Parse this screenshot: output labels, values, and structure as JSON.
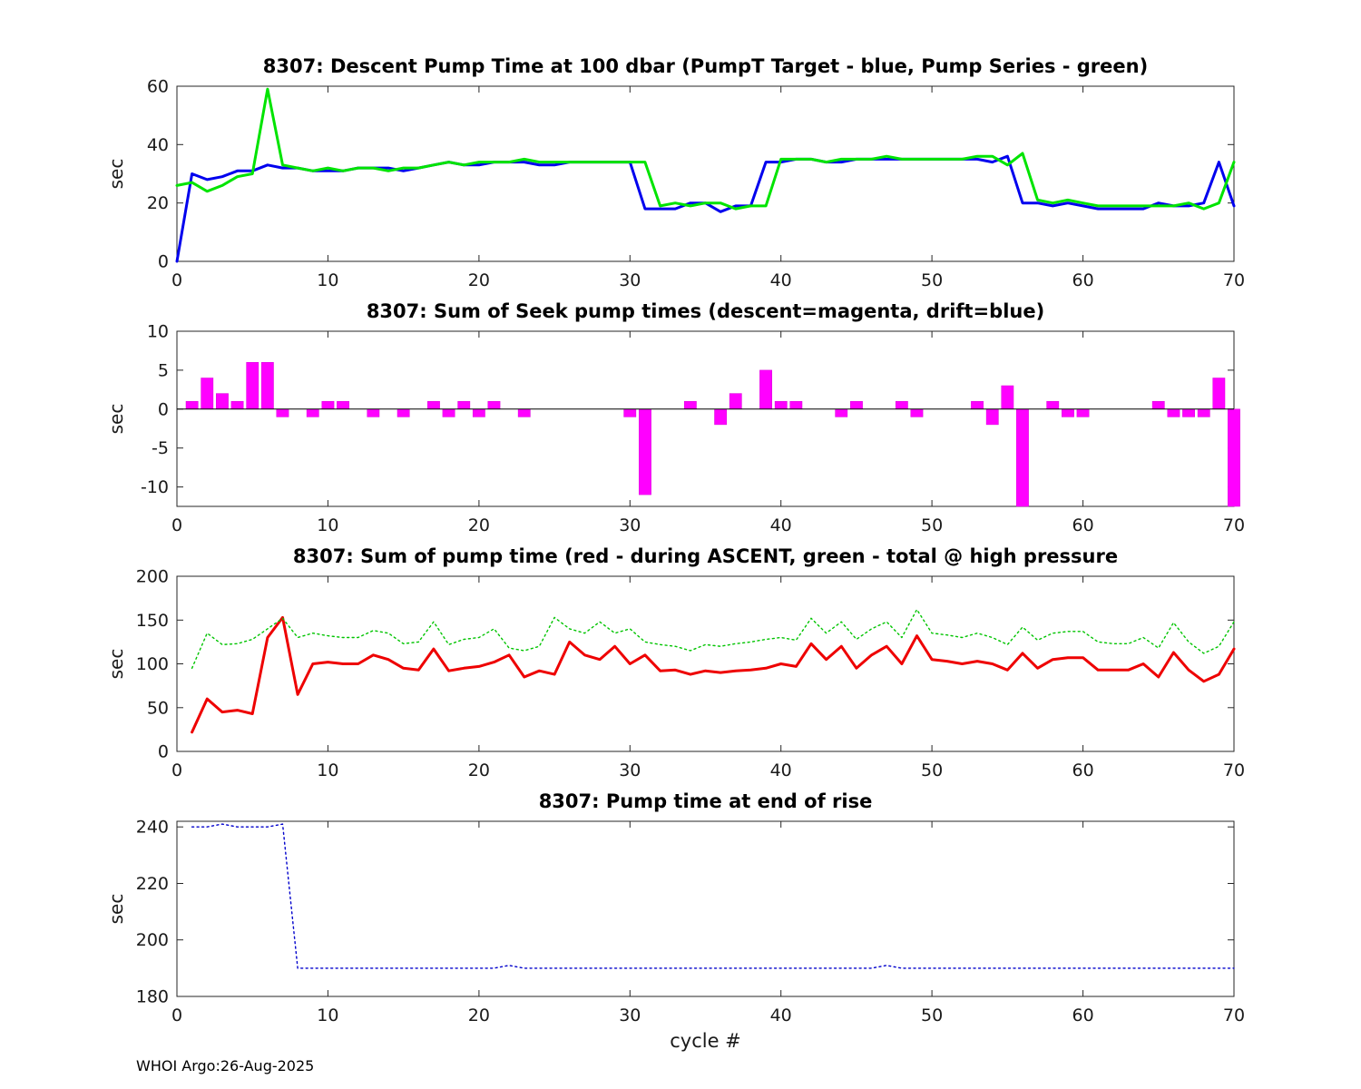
{
  "footer": {
    "text": "WHOI Argo:26-Aug-2025"
  },
  "chart_data": [
    {
      "type": "line",
      "title": "8307: Descent Pump Time at 100 dbar (PumpT Target - blue, Pump Series - green)",
      "ylabel": "sec",
      "xlabel": "",
      "xlim": [
        0,
        70
      ],
      "ylim": [
        0,
        60
      ],
      "xticks": [
        0,
        10,
        20,
        30,
        40,
        50,
        60,
        70
      ],
      "yticks": [
        0,
        20,
        40,
        60
      ],
      "series": [
        {
          "name": "PumpT Target",
          "color": "#0000ee",
          "width": 3,
          "dash": "solid",
          "x_start": 0,
          "y": [
            0,
            30,
            28,
            29,
            31,
            31,
            33,
            32,
            32,
            31,
            31,
            31,
            32,
            32,
            32,
            31,
            32,
            33,
            34,
            33,
            33,
            34,
            34,
            34,
            33,
            33,
            34,
            34,
            34,
            34,
            34,
            18,
            18,
            18,
            20,
            20,
            17,
            19,
            19,
            34,
            34,
            35,
            35,
            34,
            34,
            35,
            35,
            35,
            35,
            35,
            35,
            35,
            35,
            35,
            34,
            36,
            20,
            20,
            19,
            20,
            19,
            18,
            18,
            18,
            18,
            20,
            19,
            19,
            20,
            34,
            19
          ]
        },
        {
          "name": "Pump Series",
          "color": "#00e400",
          "width": 3,
          "dash": "solid",
          "x_start": 0,
          "y": [
            26,
            27,
            24,
            26,
            29,
            30,
            59,
            33,
            32,
            31,
            32,
            31,
            32,
            32,
            31,
            32,
            32,
            33,
            34,
            33,
            34,
            34,
            34,
            35,
            34,
            34,
            34,
            34,
            34,
            34,
            34,
            34,
            19,
            20,
            19,
            20,
            20,
            18,
            19,
            19,
            35,
            35,
            35,
            34,
            35,
            35,
            35,
            36,
            35,
            35,
            35,
            35,
            35,
            36,
            36,
            33,
            37,
            21,
            20,
            21,
            20,
            19,
            19,
            19,
            19,
            19,
            19,
            20,
            18,
            20,
            34
          ]
        }
      ]
    },
    {
      "type": "bar",
      "title": "8307: Sum of Seek pump times (descent=magenta, drift=blue)",
      "ylabel": "sec",
      "xlabel": "",
      "xlim": [
        0,
        70
      ],
      "ylim": [
        -12.5,
        10
      ],
      "xticks": [
        0,
        10,
        20,
        30,
        40,
        50,
        60,
        70
      ],
      "yticks": [
        -10,
        -5,
        0,
        5,
        10
      ],
      "series": [
        {
          "name": "descent",
          "color": "#ff00ff",
          "edge": "#d900d9",
          "x_start": 1,
          "y": [
            1,
            4,
            2,
            1,
            6,
            6,
            -1,
            0,
            -1,
            1,
            1,
            0,
            -1,
            0,
            -1,
            0,
            1,
            -1,
            1,
            -1,
            1,
            0,
            -1,
            0,
            0,
            0,
            0,
            0,
            0,
            -1,
            -11,
            0,
            0,
            1,
            0,
            -2,
            2,
            0,
            5,
            1,
            1,
            0,
            0,
            -1,
            1,
            0,
            0,
            1,
            -1,
            0,
            0,
            0,
            1,
            -2,
            3,
            -12.5,
            0,
            1,
            -1,
            -1,
            0,
            0,
            0,
            0,
            1,
            -1,
            -1,
            -1,
            4,
            -12.5
          ]
        }
      ]
    },
    {
      "type": "line",
      "title": "8307: Sum of pump time (red - during ASCENT, green - total @ high pressure",
      "ylabel": "sec",
      "xlabel": "",
      "xlim": [
        0,
        70
      ],
      "ylim": [
        0,
        200
      ],
      "xticks": [
        0,
        10,
        20,
        30,
        40,
        50,
        60,
        70
      ],
      "yticks": [
        0,
        50,
        100,
        150,
        200
      ],
      "series": [
        {
          "name": "during ASCENT",
          "color": "#ee0000",
          "width": 3,
          "dash": "solid",
          "x_start": 1,
          "y": [
            22,
            60,
            45,
            47,
            43,
            130,
            153,
            65,
            100,
            102,
            100,
            100,
            110,
            105,
            95,
            93,
            117,
            92,
            95,
            97,
            102,
            110,
            85,
            92,
            88,
            125,
            110,
            105,
            120,
            100,
            110,
            92,
            93,
            88,
            92,
            90,
            92,
            93,
            95,
            100,
            97,
            123,
            105,
            120,
            95,
            110,
            120,
            100,
            132,
            105,
            103,
            100,
            103,
            100,
            93,
            112,
            95,
            105,
            107,
            107,
            93,
            93,
            93,
            100,
            85,
            113,
            93,
            80,
            88,
            117
          ]
        },
        {
          "name": "total at high pressure",
          "color": "#00c400",
          "width": 1.4,
          "dash": "dotted",
          "x_start": 1,
          "y": [
            95,
            135,
            122,
            123,
            128,
            140,
            152,
            130,
            135,
            132,
            130,
            130,
            138,
            135,
            123,
            125,
            148,
            122,
            128,
            130,
            140,
            118,
            115,
            120,
            153,
            140,
            135,
            148,
            135,
            140,
            125,
            122,
            120,
            115,
            122,
            120,
            123,
            125,
            128,
            130,
            127,
            152,
            135,
            148,
            128,
            140,
            148,
            130,
            162,
            135,
            133,
            130,
            135,
            130,
            122,
            142,
            127,
            135,
            137,
            137,
            125,
            123,
            123,
            130,
            118,
            147,
            125,
            112,
            120,
            148
          ]
        }
      ]
    },
    {
      "type": "line",
      "title": "8307: Pump time at end of rise",
      "ylabel": "sec",
      "xlabel": "cycle #",
      "xlim": [
        0,
        70
      ],
      "ylim": [
        180,
        242
      ],
      "xticks": [
        0,
        10,
        20,
        30,
        40,
        50,
        60,
        70
      ],
      "yticks": [
        180,
        200,
        220,
        240
      ],
      "series": [
        {
          "name": "pump time at end of rise",
          "color": "#0000cc",
          "width": 1.4,
          "dash": "dotted",
          "x_start": 1,
          "y": [
            240,
            240,
            241,
            240,
            240,
            240,
            241,
            190,
            190,
            190,
            190,
            190,
            190,
            190,
            190,
            190,
            190,
            190,
            190,
            190,
            190,
            191,
            190,
            190,
            190,
            190,
            190,
            190,
            190,
            190,
            190,
            190,
            190,
            190,
            190,
            190,
            190,
            190,
            190,
            190,
            190,
            190,
            190,
            190,
            190,
            190,
            191,
            190,
            190,
            190,
            190,
            190,
            190,
            190,
            190,
            190,
            190,
            190,
            190,
            190,
            190,
            190,
            190,
            190,
            190,
            190,
            190,
            190,
            190,
            190
          ]
        }
      ]
    }
  ]
}
